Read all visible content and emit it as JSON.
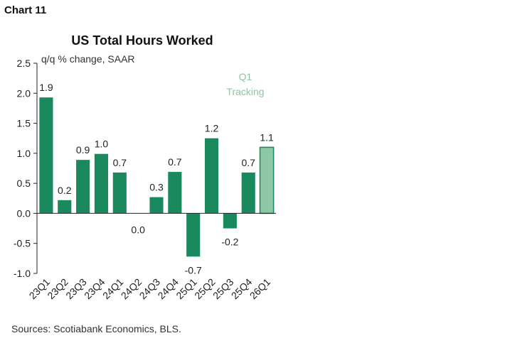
{
  "header": {
    "chart_number": "Chart 11",
    "source": "Sources: Scotiabank Economics, BLS."
  },
  "colors": {
    "bar": "#1a8a5e",
    "tracking_bar": "#8dc7a6",
    "tracking_text": "#8dc7a6"
  },
  "chart_data": {
    "type": "bar",
    "title": "US Total Hours Worked",
    "ylabel": "q/q % change, SAAR",
    "xlabel": "",
    "ylim": [
      -1.0,
      2.5
    ],
    "yticks": [
      "2.5",
      "2.0",
      "1.5",
      "1.0",
      "0.5",
      "0.0",
      "-0.5",
      "-1.0"
    ],
    "categories": [
      "23Q1",
      "23Q2",
      "23Q3",
      "23Q4",
      "24Q1",
      "24Q2",
      "24Q3",
      "24Q4",
      "25Q1",
      "25Q2",
      "25Q3",
      "25Q4",
      "26Q1"
    ],
    "values": [
      1.93,
      0.22,
      0.89,
      0.99,
      0.68,
      0.0,
      0.27,
      0.69,
      -0.72,
      1.25,
      -0.25,
      0.68,
      1.1
    ],
    "data_labels": [
      "1.9",
      "0.2",
      "0.9",
      "1.0",
      "0.7",
      "0.0",
      "0.3",
      "0.7",
      "-0.7",
      "1.2",
      "-0.2",
      "0.7",
      "1.1"
    ],
    "annotation": [
      "Q1",
      "Tracking"
    ],
    "grid": false,
    "legend": "none"
  }
}
